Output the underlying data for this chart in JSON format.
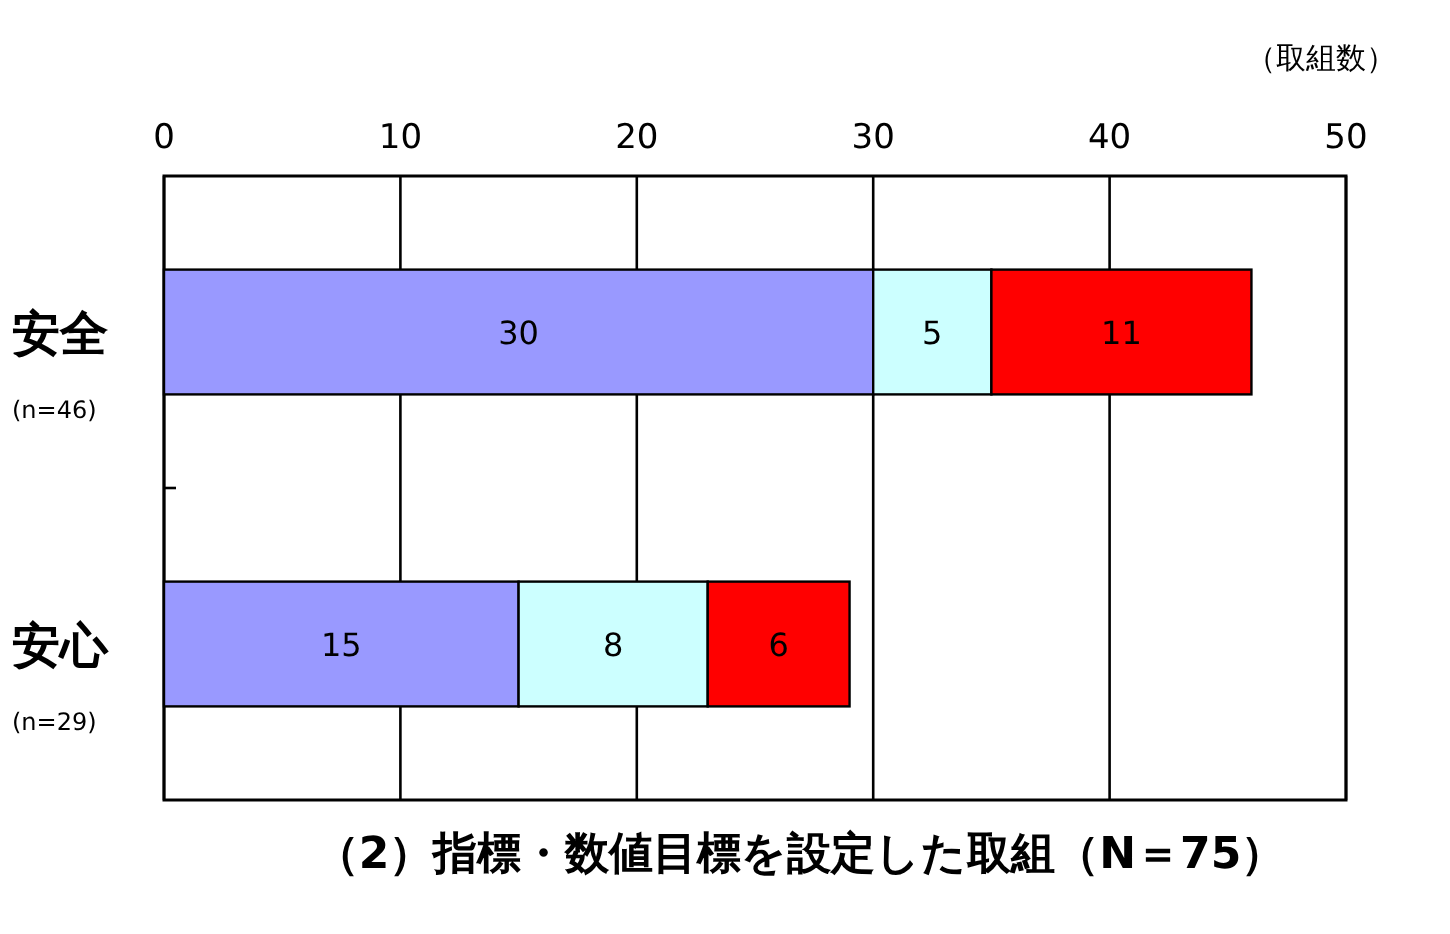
{
  "chart_data": {
    "type": "bar",
    "orientation": "horizontal",
    "stacked": true,
    "title": "（2）指標・数値目標を設定した取組（N＝75）",
    "xlabel": "（取組数）",
    "categories": [
      "安全",
      "安心"
    ],
    "annotations": [
      "(n=46)",
      "(n=29)"
    ],
    "series": [
      {
        "color": "#9999ff",
        "values": [
          30,
          15
        ]
      },
      {
        "color": "#ccffff",
        "values": [
          5,
          8
        ]
      },
      {
        "color": "#ff0000",
        "values": [
          11,
          6
        ]
      }
    ],
    "xlim": [
      0,
      50
    ],
    "xticks": [
      0,
      10,
      20,
      30,
      40,
      50
    ],
    "grid": "x",
    "data_labels": true
  }
}
